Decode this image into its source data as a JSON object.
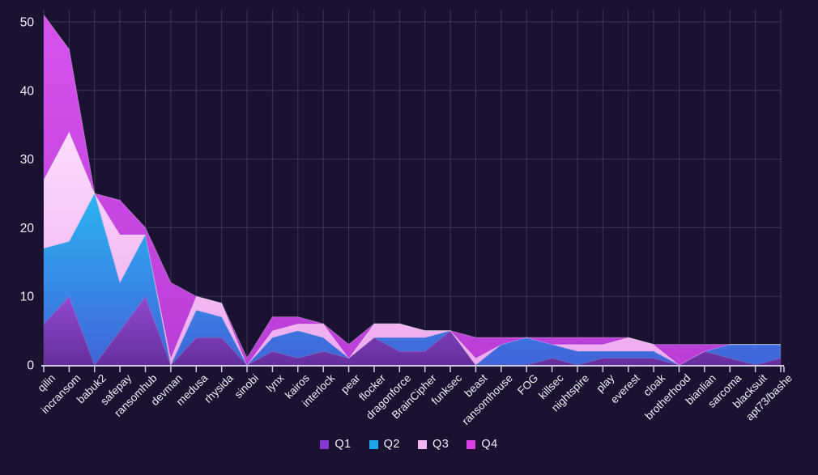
{
  "chart_data": {
    "type": "area",
    "stacked": true,
    "title": "",
    "xlabel": "",
    "ylabel": "",
    "grid": true,
    "legend_position": "bottom-center",
    "background": "#1a1230",
    "ylim": [
      0,
      53
    ],
    "y_ticks": [
      0,
      10,
      20,
      30,
      40,
      50
    ],
    "categories": [
      "qilin",
      "incransom",
      "babuk2",
      "safepay",
      "ransomhub",
      "devman",
      "medusa",
      "rhysida",
      "sinobi",
      "lynx",
      "kairos",
      "interlock",
      "pear",
      "flocker",
      "dragonforce",
      "BrainCipher",
      "funksec",
      "beast",
      "ransomhouse",
      "FOG",
      "killsec",
      "nightspire",
      "play",
      "everest",
      "cloak",
      "brotherhood",
      "bianlian",
      "sarcoma",
      "blacksuit",
      "apt73/bashe"
    ],
    "series": [
      {
        "name": "Q1",
        "legend_color": "#8438d0",
        "color_top": "#9149d2",
        "color_bottom": "#662f9c",
        "values": [
          6,
          10,
          0,
          5,
          10,
          0,
          4,
          4,
          0,
          2,
          1,
          2,
          1,
          4,
          2,
          2,
          5,
          0,
          0,
          0,
          1,
          0,
          1,
          1,
          1,
          0,
          2,
          1,
          0,
          1
        ]
      },
      {
        "name": "Q2",
        "legend_color": "#1ba6ec",
        "color_top": "#2ab4f2",
        "color_bottom": "#4164da",
        "values": [
          11,
          8,
          25,
          7,
          9,
          0,
          4,
          3,
          0,
          2,
          4,
          2,
          0,
          0,
          2,
          2,
          0,
          0,
          3,
          4,
          2,
          2,
          1,
          1,
          1,
          0,
          0,
          2,
          3,
          2
        ]
      },
      {
        "name": "Q3",
        "legend_color": "#f2b6f2",
        "color_top": "#fcdcfc",
        "color_bottom": "#efa9f0",
        "values": [
          10,
          16,
          0,
          7,
          0,
          1,
          2,
          2,
          0,
          1,
          1,
          2,
          0,
          2,
          2,
          1,
          0,
          1,
          0,
          0,
          0,
          1,
          1,
          2,
          1,
          0,
          0,
          0,
          0,
          0
        ]
      },
      {
        "name": "Q4",
        "legend_color": "#d83fe4",
        "color_top": "#d751ef",
        "color_bottom": "#bb3ed9",
        "values": [
          24,
          12,
          0,
          5,
          1,
          11,
          0,
          0,
          1,
          2,
          1,
          0,
          2,
          0,
          0,
          0,
          0,
          3,
          1,
          0,
          1,
          1,
          1,
          0,
          0,
          3,
          1,
          0,
          0,
          0
        ]
      }
    ]
  },
  "colors": {
    "background": "#1a1230",
    "grid": "rgba(150,144,180,0.28)",
    "axis": "#cfc8e2",
    "text": "#f2eefa"
  }
}
